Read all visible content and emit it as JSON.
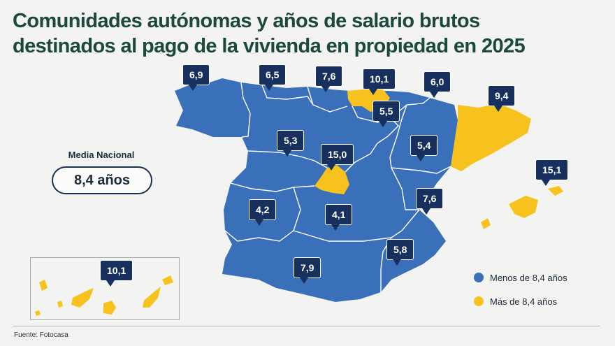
{
  "title": {
    "line1": "Comunidades autónomas y años de salario brutos",
    "line2": "destinados al pago de la vivienda en propiedad en 2025"
  },
  "media": {
    "label": "Media Nacional",
    "value": "8,4 años"
  },
  "colors": {
    "below": "#3a6fb9",
    "above": "#f7c21d",
    "callout": "#17305e",
    "title": "#1c4a3a"
  },
  "regions": [
    {
      "name": "Galicia",
      "value": "6,9",
      "category": "below"
    },
    {
      "name": "Asturias",
      "value": "6,5",
      "category": "below"
    },
    {
      "name": "Cantabria",
      "value": "7,6",
      "category": "below"
    },
    {
      "name": "País Vasco",
      "value": "10,1",
      "category": "above"
    },
    {
      "name": "Navarra",
      "value": "6,0",
      "category": "below"
    },
    {
      "name": "La Rioja",
      "value": "5,5",
      "category": "below"
    },
    {
      "name": "Cataluña",
      "value": "9,4",
      "category": "above"
    },
    {
      "name": "Castilla y León",
      "value": "5,3",
      "category": "below"
    },
    {
      "name": "Aragón",
      "value": "5,4",
      "category": "below"
    },
    {
      "name": "Madrid",
      "value": "15,0",
      "category": "above"
    },
    {
      "name": "Islas Baleares",
      "value": "15,1",
      "category": "above"
    },
    {
      "name": "Comunidad Valenciana",
      "value": "7,6",
      "category": "below"
    },
    {
      "name": "Extremadura",
      "value": "4,2",
      "category": "below"
    },
    {
      "name": "Castilla-La Mancha",
      "value": "4,1",
      "category": "below"
    },
    {
      "name": "Murcia",
      "value": "5,8",
      "category": "below"
    },
    {
      "name": "Andalucía",
      "value": "7,9",
      "category": "below"
    },
    {
      "name": "Canarias",
      "value": "10,1",
      "category": "above"
    }
  ],
  "legend": {
    "below": "Menos de 8,4 años",
    "above": "Más de 8,4 años"
  },
  "source": "Fuente: Fotocasa"
}
